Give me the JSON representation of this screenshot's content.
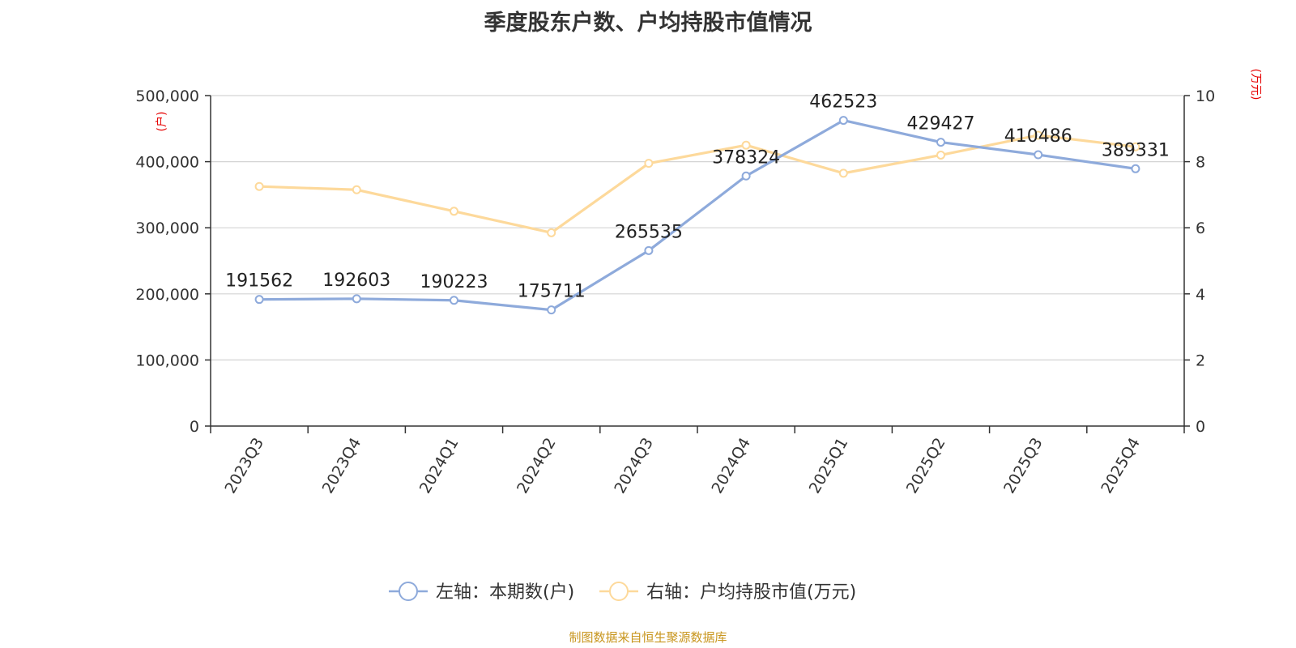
{
  "chart_data": {
    "type": "line",
    "title": "季度股东户数、户均持股市值情况",
    "categories": [
      "2023Q3",
      "2023Q4",
      "2024Q1",
      "2024Q2",
      "2024Q3",
      "2024Q4",
      "2025Q1",
      "2025Q2",
      "2025Q3",
      "2025Q4"
    ],
    "series": [
      {
        "name": "左轴：本期数(户)",
        "axis": "left",
        "color": "#8eaadb",
        "values": [
          191562,
          192603,
          190223,
          175711,
          265535,
          378324,
          462523,
          429427,
          410486,
          389331
        ],
        "data_labels": [
          "191562",
          "192603",
          "190223",
          "175711",
          "265535",
          "378324",
          "462523",
          "429427",
          "410486",
          "389331"
        ]
      },
      {
        "name": "右轴：户均持股市值(万元)",
        "axis": "right",
        "color": "#fdd99b",
        "values": [
          7.25,
          7.15,
          6.5,
          5.85,
          7.95,
          8.5,
          7.65,
          8.2,
          8.8,
          8.45
        ]
      }
    ],
    "left_axis": {
      "unit": "(户)",
      "ylim": [
        0,
        500000
      ],
      "ticks": [
        0,
        100000,
        200000,
        300000,
        400000,
        500000
      ],
      "tick_labels": [
        "0",
        "100,000",
        "200,000",
        "300,000",
        "400,000",
        "500,000"
      ]
    },
    "right_axis": {
      "unit": "(万元)",
      "ylim": [
        0,
        10
      ],
      "ticks": [
        0,
        2,
        4,
        6,
        8,
        10
      ],
      "tick_labels": [
        "0",
        "2",
        "4",
        "6",
        "8",
        "10"
      ]
    },
    "unit_color": "#e60000",
    "grid": true,
    "legend_position": "bottom-center"
  },
  "source": "制图数据来自恒生聚源数据库"
}
